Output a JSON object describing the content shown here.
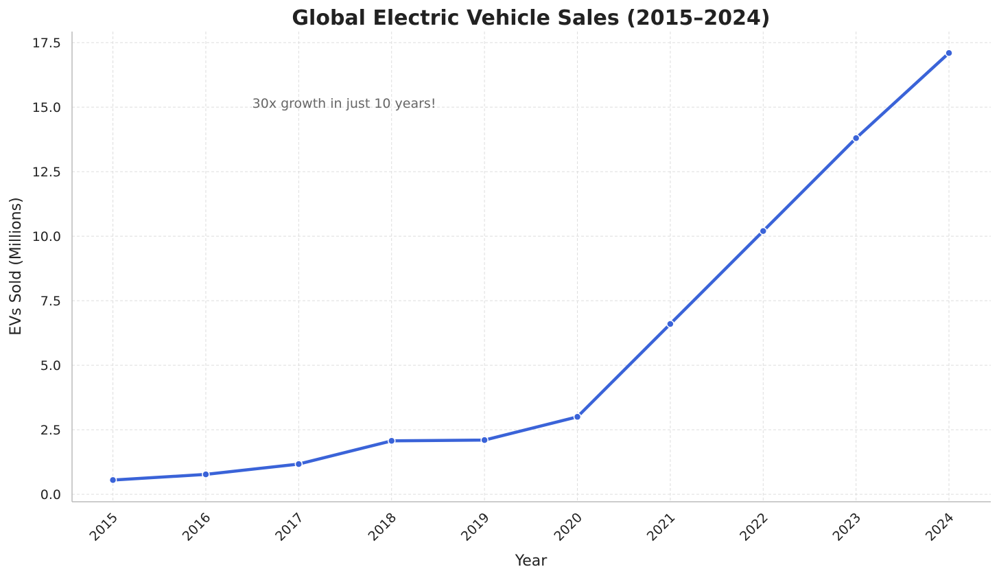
{
  "chart_data": {
    "type": "line",
    "title": "Global Electric Vehicle Sales (2015–2024)",
    "xlabel": "Year",
    "ylabel": "EVs Sold (Millions)",
    "x": [
      2015,
      2016,
      2017,
      2018,
      2019,
      2020,
      2021,
      2022,
      2023,
      2024
    ],
    "series": [
      {
        "name": "EVs Sold",
        "values": [
          0.55,
          0.77,
          1.17,
          2.07,
          2.1,
          3.0,
          6.6,
          10.2,
          13.8,
          17.1
        ],
        "color": "#3a63d8"
      }
    ],
    "xlim": [
      2014.56,
      2024.45
    ],
    "ylim": [
      -0.29,
      17.93
    ],
    "yticks": [
      0.0,
      2.5,
      5.0,
      7.5,
      10.0,
      12.5,
      15.0,
      17.5
    ],
    "ytick_labels": [
      "0.0",
      "2.5",
      "5.0",
      "7.5",
      "10.0",
      "12.5",
      "15.0",
      "17.5"
    ],
    "xtick_labels": [
      "2015",
      "2016",
      "2017",
      "2018",
      "2019",
      "2020",
      "2021",
      "2022",
      "2023",
      "2024"
    ],
    "grid": true,
    "annotation": {
      "text": "30x growth in just 10 years!",
      "x": 2016.5,
      "y": 15.0
    }
  }
}
